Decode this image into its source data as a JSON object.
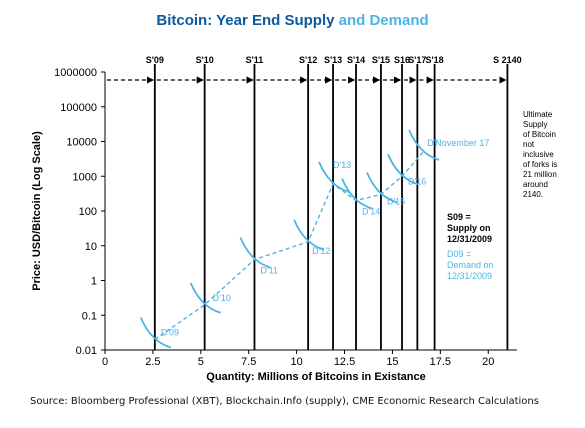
{
  "title": {
    "part1": "Bitcoin: Year End Supply",
    "part2": "and Demand"
  },
  "source": "Source: Bloomberg Professional (XBT), Blockchain.Info (supply), CME Economic Research Calculations",
  "colors": {
    "title_supply": "#0a5aa0",
    "demand": "#4db3e6",
    "supply": "#000000"
  },
  "chart_data": {
    "type": "line",
    "xlabel": "Quantity: Millions of Bitcoins in Existance",
    "ylabel": "Price: USD/Bitcoin (Log Scale)",
    "xlim": [
      0,
      21.5
    ],
    "ylim": [
      0.01,
      1000000
    ],
    "yscale": "log",
    "xticks": [
      0,
      2.5,
      5,
      7.5,
      10,
      12.5,
      15,
      17.5,
      20
    ],
    "xtick_labels": [
      "0",
      "2.5",
      "5",
      "7.5",
      "10",
      "12.5",
      "15",
      "17.5",
      "20"
    ],
    "yticks": [
      0.01,
      0.1,
      1,
      10,
      100,
      1000,
      10000,
      100000,
      1000000
    ],
    "ytick_labels": [
      "0.01",
      "0.1",
      "1",
      "10",
      "100",
      "1000",
      "10000",
      "100000",
      "1000000"
    ],
    "grid": false,
    "supply_lines": [
      {
        "label": "S'09",
        "x": 2.6
      },
      {
        "label": "S'10",
        "x": 5.2
      },
      {
        "label": "S'11",
        "x": 7.8
      },
      {
        "label": "S'12",
        "x": 10.6
      },
      {
        "label": "S'13",
        "x": 11.9
      },
      {
        "label": "S'14",
        "x": 13.1
      },
      {
        "label": "S'15",
        "x": 14.4
      },
      {
        "label": "S16",
        "x": 15.5
      },
      {
        "label": "S'17",
        "x": 16.3
      },
      {
        "label": "S'18",
        "x": 17.2
      },
      {
        "label": "S 2140",
        "x": 21
      }
    ],
    "demand_points": [
      {
        "label": "D'09",
        "x": 2.6,
        "y": 0.02
      },
      {
        "label": "D'10",
        "x": 5.2,
        "y": 0.2
      },
      {
        "label": "D'11",
        "x": 7.8,
        "y": 4
      },
      {
        "label": "D'12",
        "x": 10.6,
        "y": 13
      },
      {
        "label": "D'13",
        "x": 11.9,
        "y": 600
      },
      {
        "label": "D'14",
        "x": 13.1,
        "y": 200
      },
      {
        "label": "D'15",
        "x": 14.4,
        "y": 300
      },
      {
        "label": "D'16",
        "x": 15.5,
        "y": 1000
      },
      {
        "label": "D'November 17",
        "x": 16.6,
        "y": 5000
      }
    ],
    "annotations": {
      "ultimate": [
        "Ultimate",
        "Supply",
        "of Bitcoin",
        "not",
        "inclusive",
        "of forks is",
        "21 million",
        "around",
        "2140."
      ],
      "legend_supply": [
        "S09 =",
        "Supply on",
        "12/31/2009"
      ],
      "legend_demand": [
        "D09 =",
        "Demand on",
        "12/31/2009"
      ]
    }
  }
}
